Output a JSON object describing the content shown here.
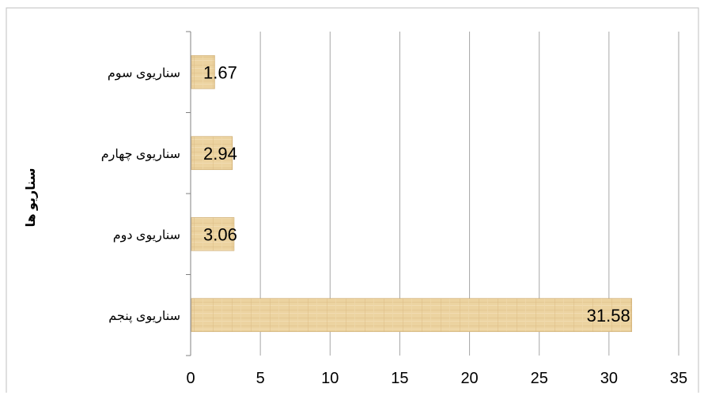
{
  "chart_data": {
    "type": "bar",
    "orientation": "horizontal",
    "categories": [
      "سناریوی پنجم",
      "سناریوی دوم",
      "سناریوی چهارم",
      "سناریوی سوم"
    ],
    "values": [
      31.58,
      3.06,
      2.94,
      1.67
    ],
    "data_labels": [
      "31.58",
      "3.06",
      "2.94",
      "1.67"
    ],
    "ylabel": "سناریو ها",
    "xlim": [
      0,
      35
    ],
    "x_ticks": [
      0,
      5,
      10,
      15,
      20,
      25,
      30,
      35
    ],
    "x_tick_labels": [
      "0",
      "5",
      "10",
      "15",
      "20",
      "25",
      "30",
      "35"
    ],
    "grid": true,
    "colors": {
      "bar_fill": "#ecd3a0",
      "bar_stroke": "#c9a668",
      "gridline": "#a6a6a6",
      "axis": "#808080",
      "frame": "#bfbfbf",
      "text": "#000000"
    }
  }
}
